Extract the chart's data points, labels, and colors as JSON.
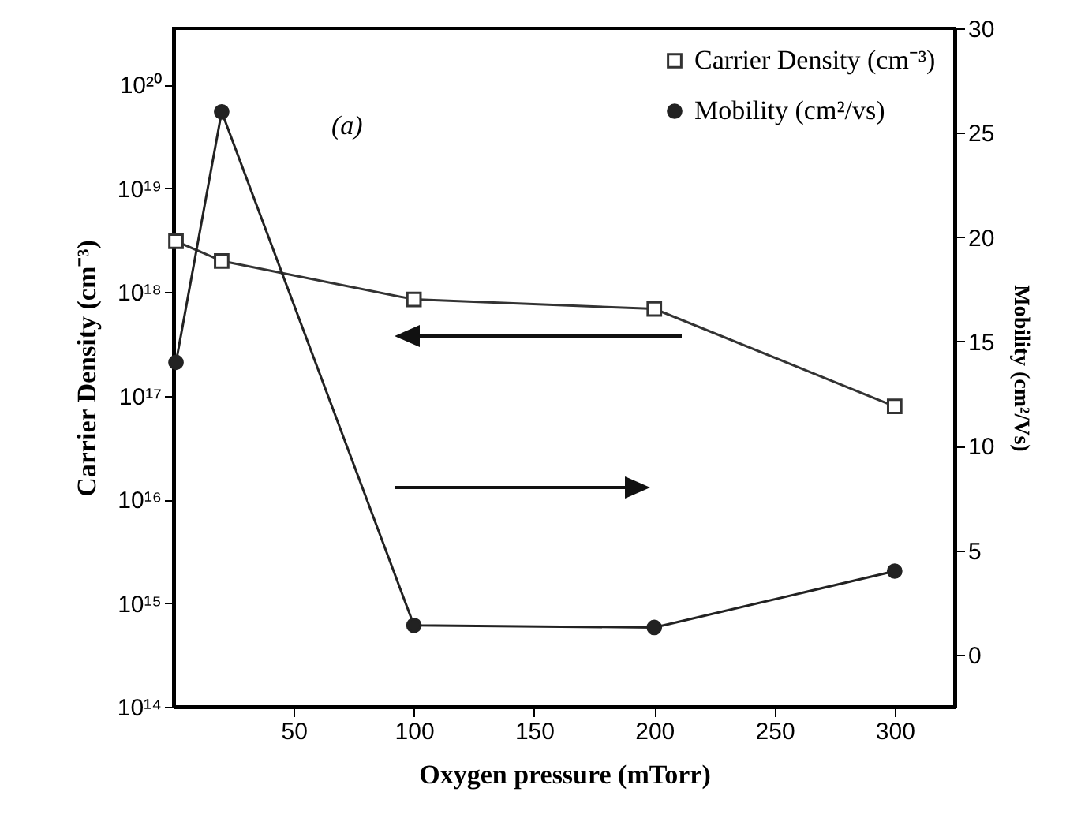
{
  "chart_data": {
    "type": "line",
    "xlabel": "Oxygen pressure (mTorr)",
    "ylabel": "Carrier Density (cm⁻³)",
    "y2label": "Mobility (cm²/Vs)",
    "annotations": [
      "(a)"
    ],
    "xlim": [
      0,
      325
    ],
    "xticks": [
      50,
      100,
      150,
      200,
      250,
      300
    ],
    "ylim": [
      100000000000000.0,
      3.5e+20
    ],
    "yticks": [
      {
        "value": 100000000000000.0,
        "label": "10¹⁴"
      },
      {
        "value": 1000000000000000.0,
        "label": "10¹⁵"
      },
      {
        "value": 1e+16,
        "label": "10¹⁶"
      },
      {
        "value": 1e+17,
        "label": "10¹⁷"
      },
      {
        "value": 1e+18,
        "label": "10¹⁸"
      },
      {
        "value": 1e+19,
        "label": "10¹⁹"
      },
      {
        "value": 1e+20,
        "label": "10²⁰"
      }
    ],
    "y2lim": [
      -2.5,
      30
    ],
    "y2ticks": [
      0,
      5,
      10,
      15,
      20,
      25,
      30
    ],
    "log": "y",
    "legend": "top right",
    "series": [
      {
        "name": "Carrier Density (cm⁻³)",
        "color": "#333333",
        "marker": "square",
        "x": [
          1,
          20,
          100,
          200,
          300
        ],
        "values": [
          3.1e+18,
          2e+18,
          8.5e+17,
          6.9e+17,
          7.9e+16
        ]
      },
      {
        "name": "Mobility (cm²/vs)",
        "color": "#222222",
        "marker": "circle",
        "axis": "y2",
        "x": [
          1,
          20,
          100,
          200,
          300
        ],
        "values": [
          14,
          26,
          1.4,
          1.3,
          4
        ]
      }
    ]
  }
}
